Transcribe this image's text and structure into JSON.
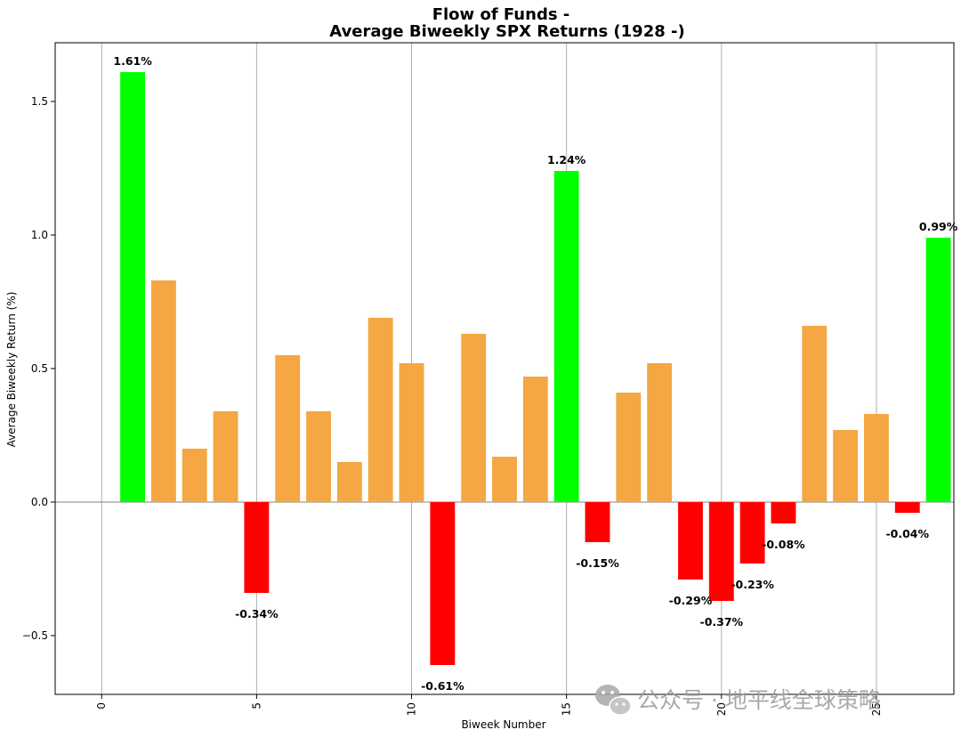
{
  "chart_data": {
    "type": "bar",
    "title_line1": "Flow of Funds -",
    "title_line2": "Average Biweekly SPX Returns (1928 -)",
    "xlabel": "Biweek Number",
    "ylabel": "Average Biweekly Return (%)",
    "xlim": [
      -1.5,
      27.5
    ],
    "ylim": [
      -0.72,
      1.72
    ],
    "xticks": [
      0,
      5,
      10,
      15,
      20,
      25
    ],
    "xtick_labels": [
      "0",
      "5",
      "10",
      "15",
      "20",
      "25"
    ],
    "yticks": [
      -0.5,
      0.0,
      0.5,
      1.0,
      1.5
    ],
    "ytick_labels": [
      "−0.5",
      "0.0",
      "0.5",
      "1.0",
      "1.5"
    ],
    "grid": "vertical",
    "x": [
      1,
      2,
      3,
      4,
      5,
      6,
      7,
      8,
      9,
      10,
      11,
      12,
      13,
      14,
      15,
      16,
      17,
      18,
      19,
      20,
      21,
      22,
      23,
      24,
      25,
      26,
      27
    ],
    "values": [
      1.61,
      0.83,
      0.2,
      0.34,
      -0.34,
      0.55,
      0.34,
      0.15,
      0.69,
      0.52,
      -0.61,
      0.63,
      0.17,
      0.47,
      1.24,
      -0.15,
      0.41,
      0.52,
      -0.29,
      -0.37,
      -0.23,
      -0.08,
      0.66,
      0.27,
      0.33,
      -0.04,
      0.99
    ],
    "bar_colors": [
      "#00ff00",
      "#f4a742",
      "#f4a742",
      "#f4a742",
      "#ff0000",
      "#f4a742",
      "#f4a742",
      "#f4a742",
      "#f4a742",
      "#f4a742",
      "#ff0000",
      "#f4a742",
      "#f4a742",
      "#f4a742",
      "#00ff00",
      "#ff0000",
      "#f4a742",
      "#f4a742",
      "#ff0000",
      "#ff0000",
      "#ff0000",
      "#ff0000",
      "#f4a742",
      "#f4a742",
      "#f4a742",
      "#ff0000",
      "#00ff00"
    ],
    "annotations": [
      {
        "x": 1,
        "y": 1.61,
        "text": "1.61%"
      },
      {
        "x": 5,
        "y": -0.34,
        "text": "-0.34%"
      },
      {
        "x": 11,
        "y": -0.61,
        "text": "-0.61%"
      },
      {
        "x": 15,
        "y": 1.24,
        "text": "1.24%"
      },
      {
        "x": 16,
        "y": -0.15,
        "text": "-0.15%"
      },
      {
        "x": 19,
        "y": -0.29,
        "text": "-0.29%"
      },
      {
        "x": 20,
        "y": -0.37,
        "text": "-0.37%"
      },
      {
        "x": 21,
        "y": -0.23,
        "text": "-0.23%"
      },
      {
        "x": 22,
        "y": -0.08,
        "text": "-0.08%"
      },
      {
        "x": 26,
        "y": -0.04,
        "text": "-0.04%"
      },
      {
        "x": 27,
        "y": 0.99,
        "text": "0.99%"
      }
    ]
  },
  "watermark": {
    "text": "公众号 · 地平线全球策略",
    "icon": "wechat-icon"
  },
  "colors": {
    "positive_high": "#00ff00",
    "positive": "#f4a742",
    "negative": "#ff0000",
    "axis": "#000000",
    "grid": "#b0b0b0",
    "zero_line": "#808080"
  }
}
